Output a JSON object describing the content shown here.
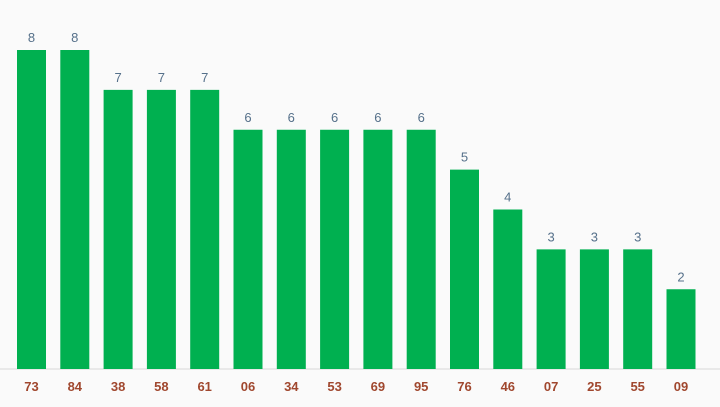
{
  "chart_data": {
    "type": "bar",
    "categories": [
      "73",
      "84",
      "38",
      "58",
      "61",
      "06",
      "34",
      "53",
      "69",
      "95",
      "76",
      "46",
      "07",
      "25",
      "55",
      "09"
    ],
    "values": [
      8,
      8,
      7,
      7,
      7,
      6,
      6,
      6,
      6,
      6,
      5,
      4,
      3,
      3,
      3,
      2
    ],
    "ylim": [
      0,
      8
    ],
    "grid": false,
    "legend": "none",
    "colors": {
      "bar": "#00b050",
      "value_label": "#55708a",
      "tick_label": "#a0472e",
      "baseline": "#d8d8d8",
      "background": "#fafafa"
    }
  }
}
